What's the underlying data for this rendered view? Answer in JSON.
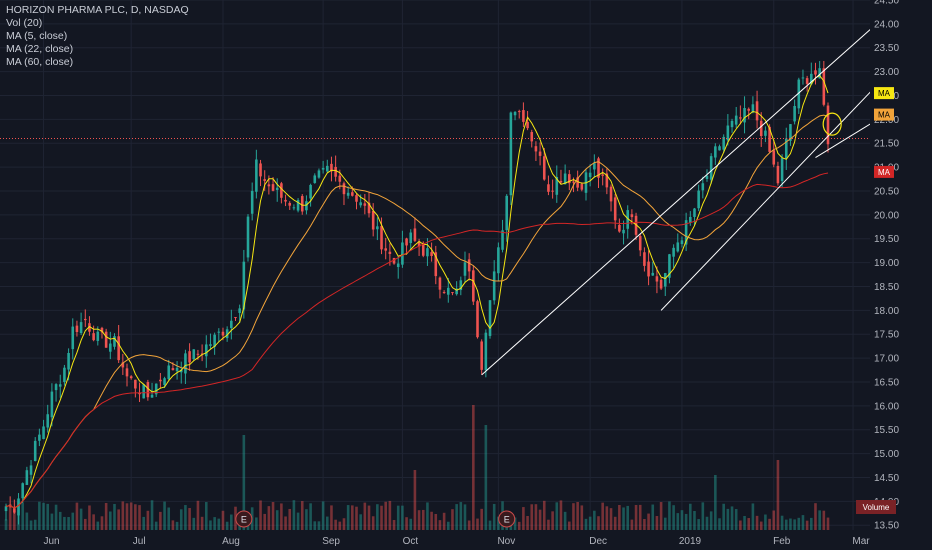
{
  "legend": {
    "title": "HORIZON PHARMA PLC, D, NASDAQ",
    "vol": "Vol (20)",
    "ma5": "MA (5, close)",
    "ma22": "MA (22, close)",
    "ma60": "MA (60, close)"
  },
  "colors": {
    "background": "#131722",
    "up": "#26a69a",
    "down": "#ef5350",
    "ma5": "#f6e712",
    "ma22": "#f2a43a",
    "ma60": "#d32626",
    "trendline": "#ffffff",
    "price_line": "#ef5350"
  },
  "chart_data": {
    "type": "candlestick",
    "symbol": "HORIZON PHARMA PLC",
    "interval": "D",
    "exchange": "NASDAQ",
    "x_ticks": [
      "Jun",
      "Jul",
      "Aug",
      "Sep",
      "Oct",
      "Nov",
      "Dec",
      "2019",
      "Feb",
      "Mar"
    ],
    "y_ticks": [
      "13.50",
      "14.00",
      "14.50",
      "15.00",
      "15.50",
      "16.00",
      "16.50",
      "17.00",
      "17.50",
      "18.00",
      "18.50",
      "19.00",
      "19.50",
      "20.00",
      "20.50",
      "21.00",
      "21.50",
      "22.00",
      "22.50",
      "23.00",
      "23.50",
      "24.00",
      "24.50"
    ],
    "ylim": [
      13.4,
      24.5
    ],
    "right_labels": [
      {
        "text": "MA",
        "value": 22.55,
        "color": "#f6e712"
      },
      {
        "text": "MA",
        "value": 22.1,
        "color": "#f2a43a"
      },
      {
        "text": "MA",
        "value": 20.9,
        "color": "#d32626"
      }
    ],
    "volume_label": "Volume",
    "earnings_markers": [
      {
        "label": "E",
        "date": "Aug 8"
      },
      {
        "label": "E",
        "date": "Nov 5"
      }
    ],
    "trendlines": [
      {
        "from": [
          "Oct 26",
          16.65
        ],
        "to": [
          "Mar 8",
          23.95
        ]
      },
      {
        "from": [
          "Dec 26",
          18.0
        ],
        "to": [
          "Mar 8",
          22.65
        ]
      },
      {
        "from": [
          "Feb 15",
          21.2
        ],
        "to": [
          "Mar 8",
          21.95
        ]
      }
    ],
    "current_price": 21.6,
    "annotation": {
      "type": "circle",
      "date": "Feb 21",
      "value": 21.9
    },
    "anchors": [
      [
        "May 23",
        13.9
      ],
      [
        "May 29",
        14.9
      ],
      [
        "Jun 1",
        15.6
      ],
      [
        "Jun 5",
        16.2
      ],
      [
        "Jun 8",
        16.8
      ],
      [
        "Jun 12",
        17.6
      ],
      [
        "Jun 15",
        17.8
      ],
      [
        "Jun 20",
        17.4
      ],
      [
        "Jun 26",
        17.3
      ],
      [
        "Jun 29",
        16.6
      ],
      [
        "Jul 6",
        16.2
      ],
      [
        "Jul 12",
        16.7
      ],
      [
        "Jul 18",
        16.9
      ],
      [
        "Jul 24",
        17.1
      ],
      [
        "Jul 30",
        17.4
      ],
      [
        "Aug 3",
        17.8
      ],
      [
        "Aug 7",
        18.2
      ],
      [
        "Aug 9",
        19.9
      ],
      [
        "Aug 13",
        21.0
      ],
      [
        "Aug 16",
        20.6
      ],
      [
        "Aug 22",
        20.3
      ],
      [
        "Aug 28",
        20.2
      ],
      [
        "Aug 31",
        20.7
      ],
      [
        "Sep 5",
        20.9
      ],
      [
        "Sep 11",
        20.6
      ],
      [
        "Sep 17",
        20.3
      ],
      [
        "Sep 21",
        19.6
      ],
      [
        "Sep 27",
        19.0
      ],
      [
        "Oct 3",
        19.5
      ],
      [
        "Oct 9",
        19.2
      ],
      [
        "Oct 12",
        18.6
      ],
      [
        "Oct 17",
        18.3
      ],
      [
        "Oct 19",
        18.5
      ],
      [
        "Oct 22",
        19.1
      ],
      [
        "Oct 24",
        18.3
      ],
      [
        "Oct 26",
        16.9
      ],
      [
        "Oct 29",
        17.7
      ],
      [
        "Nov 1",
        19.2
      ],
      [
        "Nov 5",
        20.4
      ],
      [
        "Nov 6",
        22.3
      ],
      [
        "Nov 9",
        22.1
      ],
      [
        "Nov 14",
        21.4
      ],
      [
        "Nov 19",
        20.6
      ],
      [
        "Nov 23",
        20.9
      ],
      [
        "Nov 28",
        20.6
      ],
      [
        "Dec 4",
        21.0
      ],
      [
        "Dec 7",
        20.5
      ],
      [
        "Dec 12",
        19.7
      ],
      [
        "Dec 17",
        20.1
      ],
      [
        "Dec 20",
        19.0
      ],
      [
        "Dec 26",
        18.5
      ],
      [
        "Dec 31",
        19.3
      ],
      [
        "Jan 4",
        19.9
      ],
      [
        "Jan 9",
        20.6
      ],
      [
        "Jan 14",
        21.3
      ],
      [
        "Jan 17",
        21.8
      ],
      [
        "Jan 22",
        22.0
      ],
      [
        "Jan 25",
        22.2
      ],
      [
        "Jan 30",
        21.6
      ],
      [
        "Feb 4",
        20.7
      ],
      [
        "Feb 7",
        21.9
      ],
      [
        "Feb 11",
        22.7
      ],
      [
        "Feb 14",
        23.0
      ],
      [
        "Feb 18",
        22.9
      ],
      [
        "Feb 20",
        21.6
      ]
    ]
  }
}
